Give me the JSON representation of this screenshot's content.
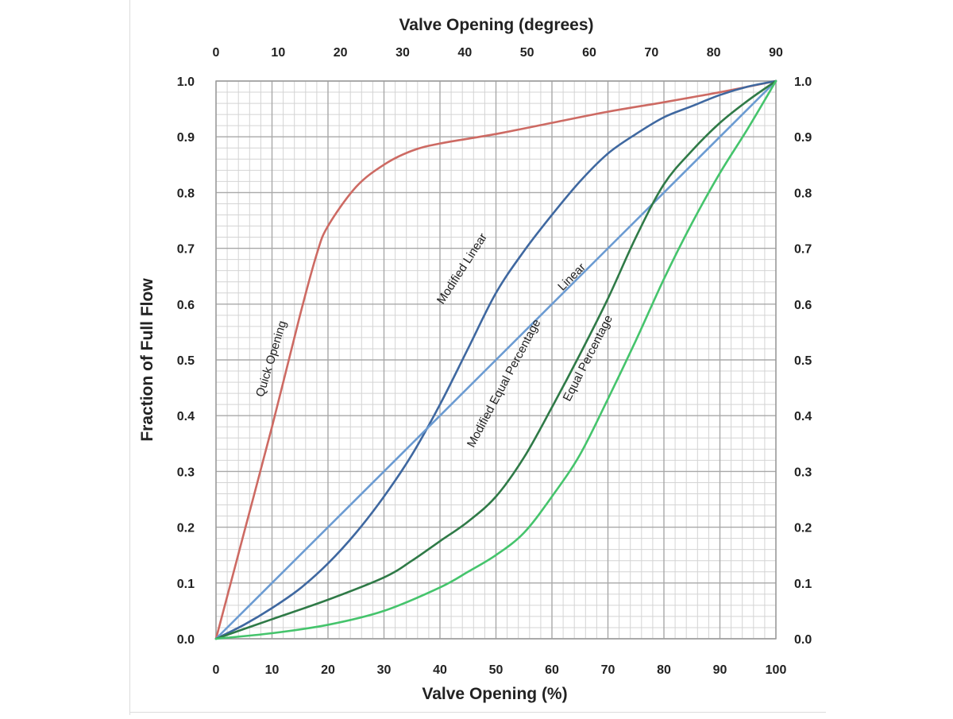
{
  "chart_data": {
    "type": "line",
    "top_axis_title": "Valve Opening (degrees)",
    "xlabel": "Valve Opening (%)",
    "ylabel": "Fraction of Full Flow",
    "xlim": [
      0,
      100
    ],
    "ylim": [
      0,
      1.0
    ],
    "top_ticks": [
      "0",
      "10",
      "20",
      "30",
      "40",
      "50",
      "60",
      "70",
      "80",
      "90"
    ],
    "x_ticks": [
      "0",
      "10",
      "20",
      "30",
      "40",
      "50",
      "60",
      "70",
      "80",
      "90",
      "100"
    ],
    "y_ticks": [
      "0.0",
      "0.1",
      "0.2",
      "0.3",
      "0.4",
      "0.5",
      "0.6",
      "0.7",
      "0.8",
      "0.9",
      "1.0"
    ],
    "grid": true,
    "legend": "none",
    "series": [
      {
        "name": "Quick Opening",
        "color": "#cd6a63",
        "x": [
          0,
          5,
          10,
          15,
          18,
          20,
          25,
          30,
          35,
          40,
          50,
          60,
          70,
          80,
          90,
          100
        ],
        "y": [
          0,
          0.19,
          0.38,
          0.58,
          0.69,
          0.74,
          0.81,
          0.85,
          0.875,
          0.888,
          0.905,
          0.925,
          0.945,
          0.962,
          0.98,
          1.0
        ]
      },
      {
        "name": "Modified Linear",
        "color": "#3f68a0",
        "x": [
          0,
          5,
          10,
          15,
          20,
          25,
          30,
          35,
          40,
          45,
          50,
          55,
          60,
          65,
          70,
          75,
          80,
          85,
          90,
          95,
          100
        ],
        "y": [
          0,
          0.025,
          0.055,
          0.09,
          0.135,
          0.19,
          0.255,
          0.33,
          0.42,
          0.52,
          0.62,
          0.695,
          0.76,
          0.82,
          0.87,
          0.905,
          0.935,
          0.955,
          0.975,
          0.99,
          1.0
        ]
      },
      {
        "name": "Linear",
        "color": "#6b9bd2",
        "x": [
          0,
          100
        ],
        "y": [
          0,
          1.0
        ]
      },
      {
        "name": "Modified Equal Percentage",
        "color": "#2f7a47",
        "x": [
          0,
          10,
          20,
          30,
          35,
          40,
          45,
          50,
          55,
          60,
          65,
          70,
          75,
          80,
          85,
          90,
          95,
          100
        ],
        "y": [
          0,
          0.035,
          0.07,
          0.11,
          0.14,
          0.175,
          0.21,
          0.255,
          0.325,
          0.415,
          0.51,
          0.61,
          0.72,
          0.815,
          0.875,
          0.925,
          0.965,
          1.0
        ]
      },
      {
        "name": "Equal Percentage",
        "color": "#45c46c",
        "x": [
          0,
          10,
          20,
          30,
          40,
          45,
          50,
          55,
          60,
          65,
          70,
          75,
          80,
          85,
          90,
          95,
          100
        ],
        "y": [
          0,
          0.01,
          0.025,
          0.05,
          0.092,
          0.12,
          0.15,
          0.19,
          0.255,
          0.33,
          0.43,
          0.535,
          0.645,
          0.745,
          0.835,
          0.915,
          1.0
        ]
      }
    ]
  }
}
